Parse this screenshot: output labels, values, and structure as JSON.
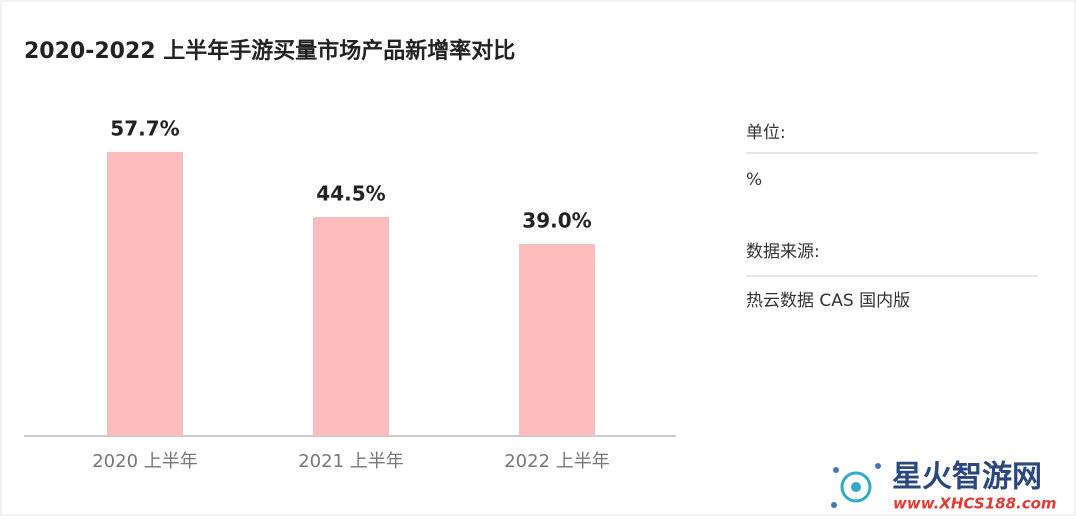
{
  "chart_data": {
    "type": "bar",
    "title": "2020-2022 上半年手游买量市场产品新增率对比",
    "categories": [
      "2020 上半年",
      "2021 上半年",
      "2022 上半年"
    ],
    "values": [
      57.7,
      44.5,
      39.0
    ],
    "value_labels": [
      "57.7%",
      "44.5%",
      "39.0%"
    ],
    "color": "#fdbcbc"
  },
  "side_panel": {
    "unit_label": "单位:",
    "unit": "%",
    "source_label": "数据来源:",
    "source": "热云数据 CAS 国内版"
  },
  "watermark": {
    "name": "星火智游网",
    "url": "www.XHCS188.com"
  }
}
